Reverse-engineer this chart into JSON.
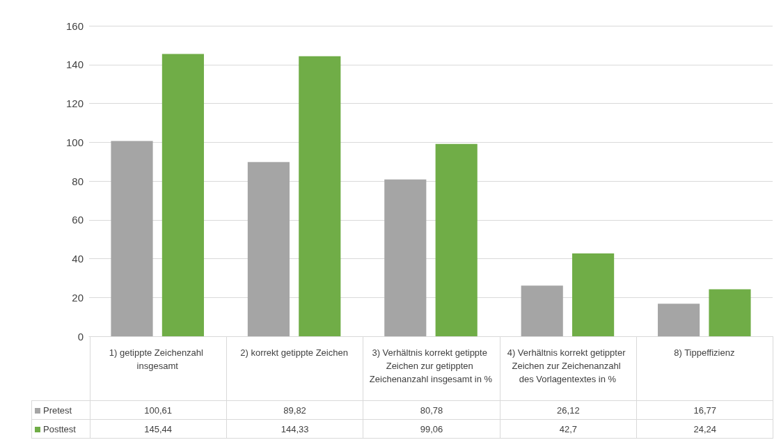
{
  "chart_data": {
    "type": "bar",
    "categories": [
      "1) getippte Zeichenzahl insgesamt",
      "2) korrekt getippte Zeichen",
      "3) Verhältnis korrekt getippte Zeichen zur getippten Zeichenanzahl insgesamt in %",
      "4) Verhältnis korrekt getippter Zeichen zur Zeichenanzahl des Vorlagentextes in %",
      "8) Tippeffizienz"
    ],
    "series": [
      {
        "name": "Pretest",
        "color": "#a5a5a5",
        "values": [
          100.61,
          89.82,
          80.78,
          26.12,
          16.77
        ],
        "value_labels": [
          "100,61",
          "89,82",
          "80,78",
          "26,12",
          "16,77"
        ]
      },
      {
        "name": "Posttest",
        "color": "#70ad47",
        "values": [
          145.44,
          144.33,
          99.06,
          42.7,
          24.24
        ],
        "value_labels": [
          "145,44",
          "144,33",
          "99,06",
          "42,7",
          "24,24"
        ]
      }
    ],
    "ylim": [
      0,
      160
    ],
    "yticks": [
      0,
      20,
      40,
      60,
      80,
      100,
      120,
      140,
      160
    ],
    "grid": "y",
    "legend": "bottom left"
  }
}
